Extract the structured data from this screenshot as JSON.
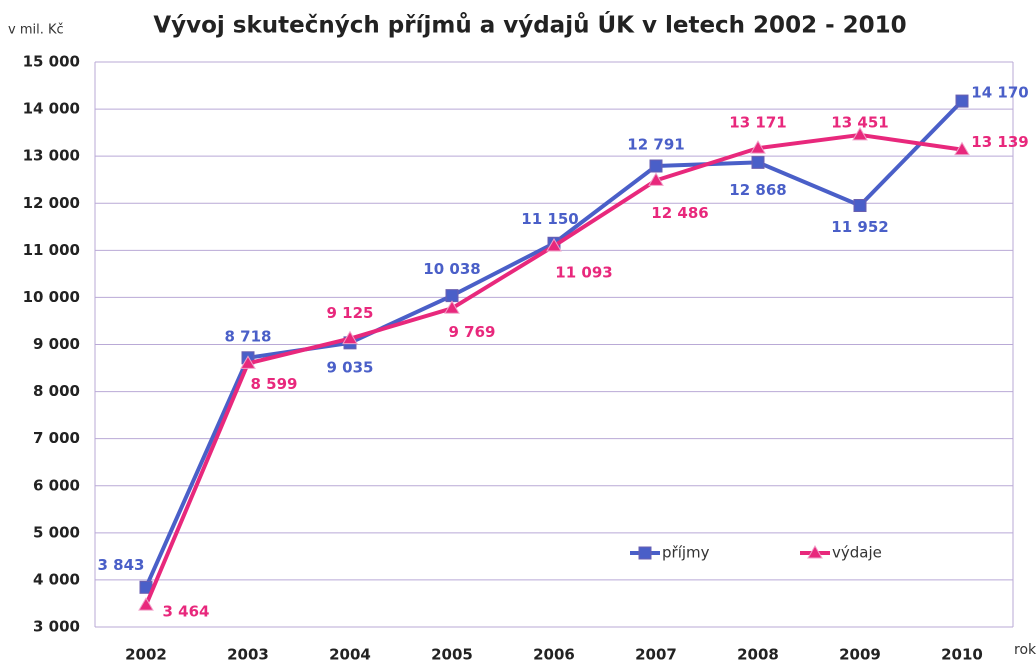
{
  "chart_data": {
    "type": "line",
    "title": "Vývoj skutečných příjmů a výdajů ÚK v letech 2002 - 2010",
    "y_label": "v mil. Kč",
    "x_label": "rok",
    "categories": [
      "2002",
      "2003",
      "2004",
      "2005",
      "2006",
      "2007",
      "2008",
      "2009",
      "2010"
    ],
    "series": [
      {
        "name": "příjmy",
        "color": "#4a5fc8",
        "marker": "square",
        "values": [
          3843,
          8718,
          9035,
          10038,
          11150,
          12791,
          12868,
          11952,
          14170
        ],
        "value_labels": [
          "3 843",
          "8 718",
          "9 035",
          "10 038",
          "11 150",
          "12 791",
          "12 868",
          "11 952",
          "14 170"
        ]
      },
      {
        "name": "výdaje",
        "color": "#e8287c",
        "marker": "triangle",
        "values": [
          3464,
          8599,
          9125,
          9769,
          11093,
          12486,
          13171,
          13451,
          13139
        ],
        "value_labels": [
          "3 464",
          "8 599",
          "9 125",
          "9 769",
          "11 093",
          "12 486",
          "13 171",
          "13 451",
          "13 139"
        ]
      }
    ],
    "ylim": [
      3000,
      15000
    ],
    "yticks": [
      {
        "value": 3000,
        "label": "3 000"
      },
      {
        "value": 4000,
        "label": "4 000"
      },
      {
        "value": 5000,
        "label": "5 000"
      },
      {
        "value": 6000,
        "label": "6 000"
      },
      {
        "value": 7000,
        "label": "7 000"
      },
      {
        "value": 8000,
        "label": "8 000"
      },
      {
        "value": 9000,
        "label": "9 000"
      },
      {
        "value": 10000,
        "label": "10 000"
      },
      {
        "value": 11000,
        "label": "11 000"
      },
      {
        "value": 12000,
        "label": "12 000"
      },
      {
        "value": 13000,
        "label": "13 000"
      },
      {
        "value": 14000,
        "label": "14 000"
      },
      {
        "value": 15000,
        "label": "15 000"
      }
    ],
    "grid": true,
    "legend": "lower right"
  }
}
